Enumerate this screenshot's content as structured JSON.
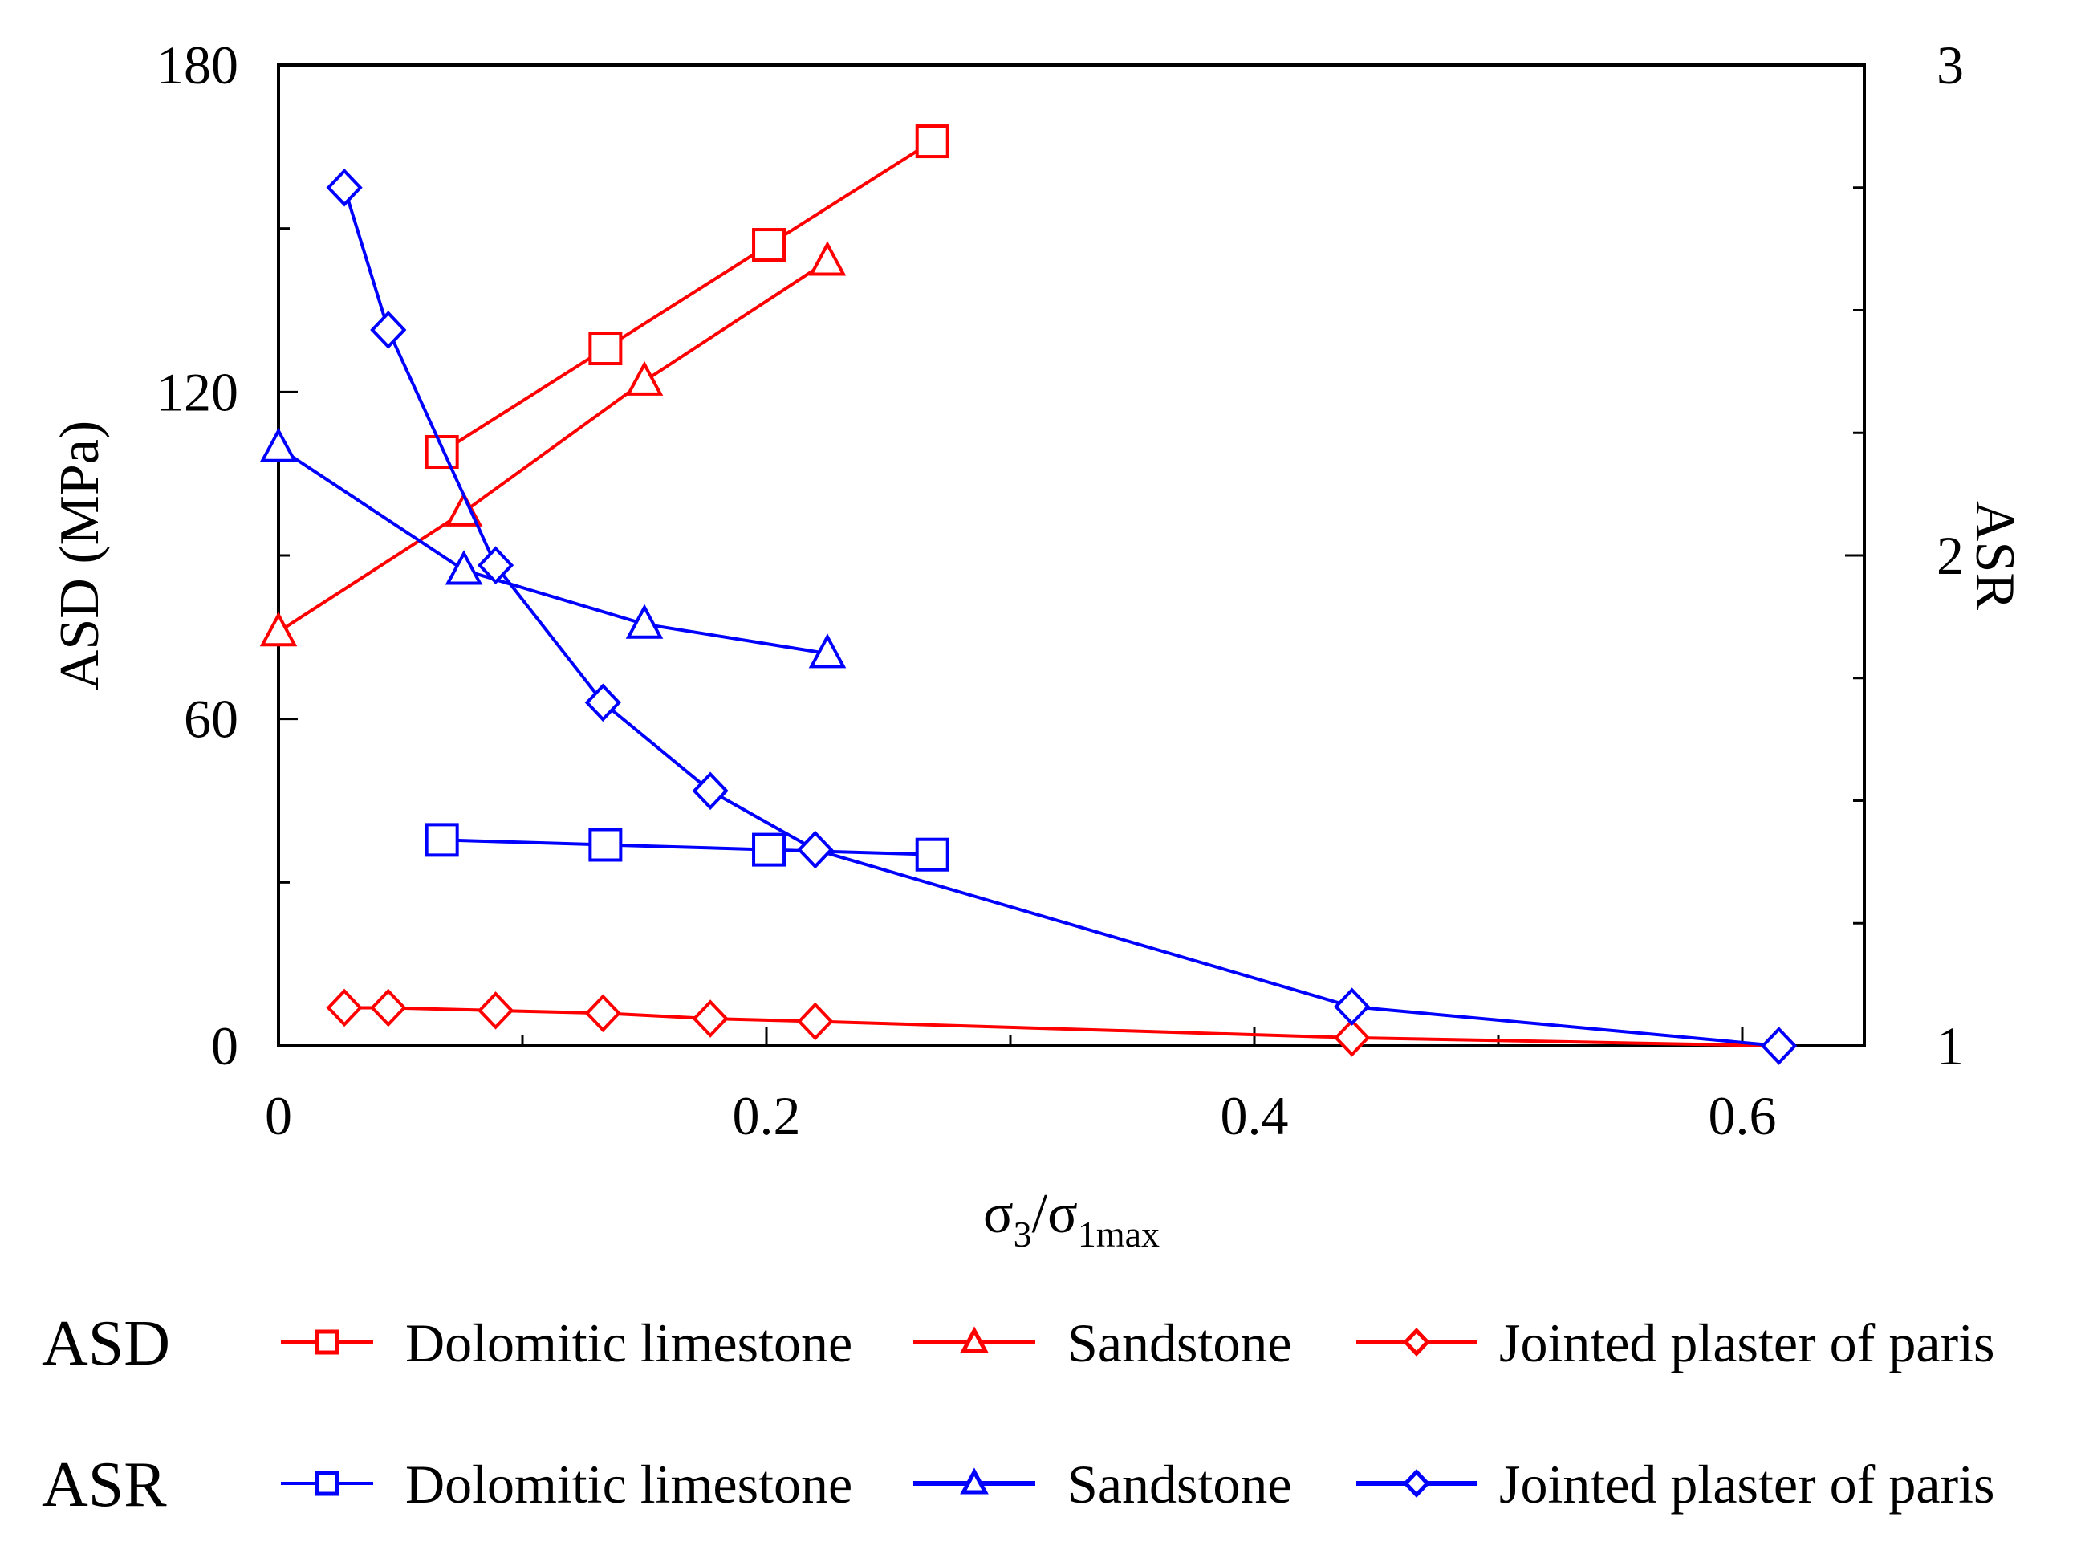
{
  "chart_data": {
    "type": "line",
    "xlabel": "σ3/σ1max",
    "xlabel_parts": {
      "base": "σ",
      "sub1": "3",
      "sep": "/σ",
      "sub2": "1max"
    },
    "ylabel_left": "ASD (MPa)",
    "ylabel_right": "ASR",
    "xlim": [
      0,
      0.65
    ],
    "ylim_left": [
      0,
      180
    ],
    "ylim_right": [
      1,
      3
    ],
    "x_ticks": [
      0,
      0.2,
      0.4,
      0.6
    ],
    "x_tick_labels": [
      "0",
      "0.2",
      "0.4",
      "0.6"
    ],
    "x_minor_ticks": [
      0.1,
      0.3,
      0.5
    ],
    "y_left_ticks": [
      0,
      60,
      120,
      180
    ],
    "y_left_tick_labels": [
      "0",
      "60",
      "120",
      "180"
    ],
    "y_left_minor_ticks": [
      30,
      90,
      150
    ],
    "y_right_ticks": [
      1,
      2,
      3
    ],
    "y_right_tick_labels": [
      "1",
      "2",
      "3"
    ],
    "y_right_minor_ticks": [
      1.25,
      1.5,
      1.75,
      2.25,
      2.5,
      2.75
    ],
    "grid": false,
    "series": [
      {
        "name": "Dolomitic limestone",
        "group": "ASD",
        "axis": "left",
        "color": "#ff0000",
        "marker": "square",
        "x": [
          0.067,
          0.134,
          0.201,
          0.268
        ],
        "y": [
          109,
          128,
          147,
          166
        ]
      },
      {
        "name": "Sandstone",
        "group": "ASD",
        "axis": "left",
        "color": "#ff0000",
        "marker": "triangle",
        "x": [
          0,
          0.076,
          0.15,
          0.225
        ],
        "y": [
          76,
          98,
          122,
          144
        ]
      },
      {
        "name": "Jointed plaster of paris",
        "group": "ASD",
        "axis": "left",
        "color": "#ff0000",
        "marker": "diamond",
        "x": [
          0.027,
          0.045,
          0.089,
          0.133,
          0.177,
          0.22,
          0.44,
          0.615
        ],
        "y": [
          7,
          7,
          6.5,
          6,
          5,
          4.5,
          1.5,
          0
        ]
      },
      {
        "name": "Dolomitic limestone",
        "group": "ASR",
        "axis": "right",
        "color": "#0000ff",
        "marker": "square",
        "x": [
          0.067,
          0.134,
          0.201,
          0.268
        ],
        "y": [
          1.42,
          1.41,
          1.4,
          1.39
        ]
      },
      {
        "name": "Sandstone",
        "group": "ASR",
        "axis": "right",
        "color": "#0000ff",
        "marker": "triangle",
        "x": [
          0,
          0.076,
          0.15,
          0.225
        ],
        "y": [
          2.22,
          1.97,
          1.86,
          1.8
        ]
      },
      {
        "name": "Jointed plaster of paris",
        "group": "ASR",
        "axis": "right",
        "color": "#0000ff",
        "marker": "diamond",
        "x": [
          0.027,
          0.045,
          0.089,
          0.133,
          0.177,
          0.22,
          0.44,
          0.615
        ],
        "y": [
          2.75,
          2.46,
          1.98,
          1.7,
          1.52,
          1.4,
          1.08,
          1
        ]
      }
    ],
    "legend": {
      "position": "bottom",
      "group_labels": [
        "ASD",
        "ASR"
      ]
    }
  }
}
